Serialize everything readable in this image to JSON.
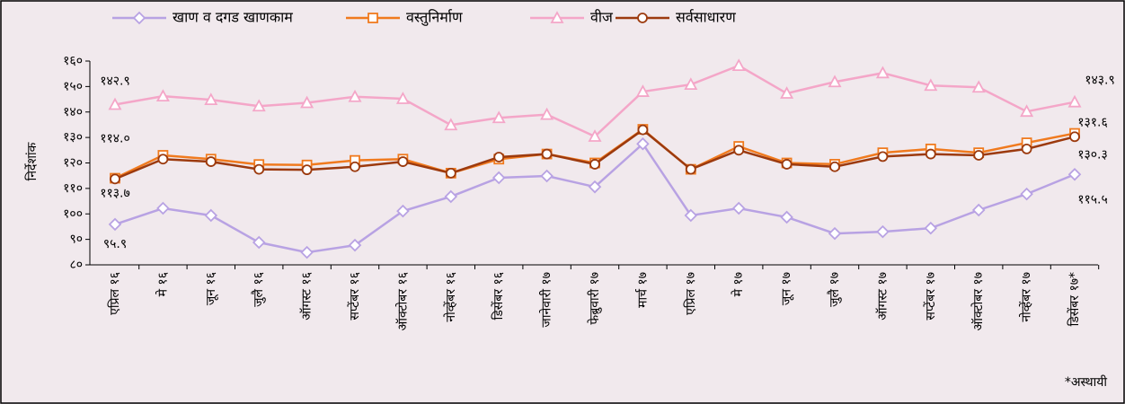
{
  "chart_data": {
    "type": "line",
    "y_label": "निर्देशांक",
    "note": "*अस्थायी",
    "categories": [
      "एप्रिल १६",
      "मे १६",
      "जून १६",
      "जुलै १६",
      "ऑगस्ट १६",
      "सप्टेंबर १६",
      "ऑक्टोबर १६",
      "नोव्हेंबर १६",
      "डिसेंबर १६",
      "जानेवारी १७",
      "फेब्रुवारी १७",
      "मार्च १७",
      "एप्रिल १७",
      "मे १७",
      "जून १७",
      "जुलै १७",
      "ऑगस्ट १७",
      "सप्टेंबर १७",
      "ऑक्टोबर १७",
      "नोव्हेंबर १७",
      "डिसेंबर १७*"
    ],
    "ylim": [
      80,
      160
    ],
    "yticks": [
      {
        "value": 80,
        "label": "८०"
      },
      {
        "value": 90,
        "label": "९०"
      },
      {
        "value": 100,
        "label": "१००"
      },
      {
        "value": 110,
        "label": "११०"
      },
      {
        "value": 120,
        "label": "१२०"
      },
      {
        "value": 130,
        "label": "१३०"
      },
      {
        "value": 140,
        "label": "१४०"
      },
      {
        "value": 150,
        "label": "१५०"
      },
      {
        "value": 160,
        "label": "१६०"
      }
    ],
    "series": [
      {
        "name": "खाण व दगड खाणकाम",
        "color": "#b8a2e3",
        "marker": "diamond",
        "values": [
          95.9,
          102.2,
          99.4,
          88.8,
          84.9,
          87.7,
          101.1,
          106.8,
          114.2,
          114.9,
          110.6,
          127.5,
          99.4,
          102.2,
          98.7,
          92.3,
          93,
          94.4,
          101.5,
          107.8,
          115.5
        ],
        "value_labels": [
          "९५.९",
          null,
          null,
          null,
          null,
          null,
          null,
          null,
          null,
          null,
          null,
          null,
          null,
          null,
          null,
          null,
          null,
          null,
          null,
          null,
          "११५.५"
        ]
      },
      {
        "name": "वस्तुनिर्माण",
        "color": "#f07a1e",
        "marker": "square",
        "values": [
          114.0,
          123,
          121.5,
          119.4,
          119.2,
          121,
          121.5,
          116,
          121.5,
          123.5,
          120,
          133.2,
          117.5,
          126.5,
          120,
          119.5,
          124,
          125.5,
          124,
          127.9,
          131.6
        ],
        "value_labels": [
          "११४.०",
          null,
          null,
          null,
          null,
          null,
          null,
          null,
          null,
          null,
          null,
          null,
          null,
          null,
          null,
          null,
          null,
          null,
          null,
          null,
          "१३१.६"
        ]
      },
      {
        "name": "वीज",
        "color": "#f4a6c8",
        "marker": "triangle",
        "values": [
          142.9,
          146.2,
          144.8,
          142.3,
          143.6,
          146,
          145.2,
          134.9,
          137.7,
          139,
          130.4,
          148,
          150.8,
          158.2,
          147.3,
          151.8,
          155.3,
          150.4,
          149.7,
          140.2,
          143.9
        ],
        "value_labels": [
          "१४२.९",
          null,
          null,
          null,
          null,
          null,
          null,
          null,
          null,
          null,
          null,
          null,
          null,
          null,
          null,
          null,
          null,
          null,
          null,
          null,
          "१४३.९"
        ]
      },
      {
        "name": "सर्वसाधारण",
        "color": "#9c3a0e",
        "marker": "circle",
        "values": [
          113.7,
          121.5,
          120.5,
          117.5,
          117.3,
          118.5,
          120.5,
          116,
          122.3,
          123.5,
          119.5,
          133,
          117.5,
          125,
          119.5,
          118.5,
          122.5,
          123.5,
          123,
          125.5,
          130.3
        ],
        "value_labels": [
          "११३.७",
          null,
          null,
          null,
          null,
          null,
          null,
          null,
          null,
          null,
          null,
          null,
          null,
          null,
          null,
          null,
          null,
          null,
          null,
          null,
          "१३०.३"
        ]
      }
    ]
  }
}
